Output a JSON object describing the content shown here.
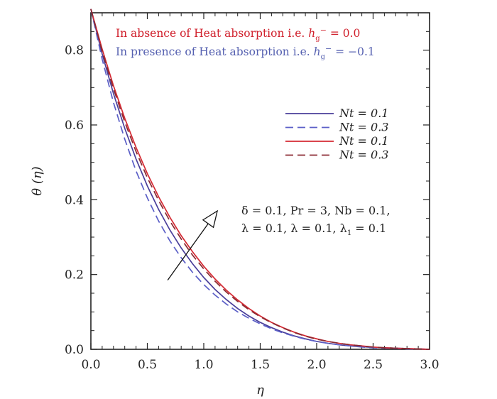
{
  "chart_data": {
    "type": "line",
    "xlabel": "η",
    "ylabel": "θ (η)",
    "xlim": [
      0.0,
      3.0
    ],
    "ylim": [
      0.0,
      0.9
    ],
    "x_ticks": [
      "0.0",
      "0.5",
      "1.0",
      "1.5",
      "2.0",
      "2.5",
      "3.0"
    ],
    "y_ticks": [
      "0.0",
      "0.2",
      "0.4",
      "0.6",
      "0.8"
    ],
    "grid": false,
    "legend_position": "right-middle",
    "annotations": {
      "absence": {
        "prefix": "In absence of Heat absorption i.e. ",
        "symbol": "h",
        "sub": "g",
        "sup": "−",
        "suffix": " = 0.0",
        "color": "#d0202c"
      },
      "presence": {
        "prefix": "In presence of Heat absorption i.e. ",
        "symbol": "h",
        "sub": "g",
        "sup": "−",
        "suffix": " = −0.1",
        "color": "#5560b0"
      },
      "params_line1": "δ = 0.1,  Pr = 3,  Nb = 0.1,",
      "params_line2": "λ = 0.1,  λ = 0.1,  λ",
      "params_line2_sub": "1",
      "params_line2_end": " = 0.1"
    },
    "arrow": {
      "from": [
        0.68,
        0.185
      ],
      "to": [
        1.12,
        0.37
      ]
    },
    "x": [
      0.0,
      0.1,
      0.2,
      0.3,
      0.4,
      0.5,
      0.6,
      0.7,
      0.8,
      0.9,
      1.0,
      1.1,
      1.2,
      1.3,
      1.4,
      1.5,
      1.6,
      1.7,
      1.8,
      1.9,
      2.0,
      2.1,
      2.2,
      2.3,
      2.4,
      2.5,
      2.6,
      2.7,
      2.8,
      2.9,
      3.0
    ],
    "series": [
      {
        "name": "Nt = 0.1",
        "color": "#4a3f9a",
        "dash": "solid",
        "values": [
          0.91,
          0.79,
          0.684,
          0.591,
          0.509,
          0.437,
          0.374,
          0.319,
          0.271,
          0.229,
          0.192,
          0.16,
          0.133,
          0.109,
          0.089,
          0.072,
          0.058,
          0.046,
          0.036,
          0.028,
          0.021,
          0.016,
          0.012,
          0.009,
          0.007,
          0.005,
          0.004,
          0.003,
          0.002,
          0.001,
          0.0
        ]
      },
      {
        "name": "Nt = 0.3",
        "color": "#5b5fc7",
        "dash": "dashed",
        "values": [
          0.91,
          0.776,
          0.66,
          0.562,
          0.477,
          0.405,
          0.343,
          0.29,
          0.245,
          0.206,
          0.173,
          0.145,
          0.121,
          0.1,
          0.083,
          0.068,
          0.055,
          0.044,
          0.035,
          0.027,
          0.021,
          0.016,
          0.012,
          0.009,
          0.006,
          0.004,
          0.003,
          0.002,
          0.001,
          0.001,
          0.0
        ]
      },
      {
        "name": "Nt = 0.1",
        "color": "#d42a33",
        "dash": "solid",
        "values": [
          0.91,
          0.803,
          0.705,
          0.618,
          0.54,
          0.47,
          0.408,
          0.353,
          0.304,
          0.261,
          0.222,
          0.188,
          0.158,
          0.132,
          0.109,
          0.089,
          0.072,
          0.058,
          0.046,
          0.036,
          0.028,
          0.021,
          0.016,
          0.012,
          0.009,
          0.006,
          0.004,
          0.003,
          0.002,
          0.001,
          0.0
        ]
      },
      {
        "name": "Nt = 0.3",
        "color": "#8a2a32",
        "dash": "dashed",
        "values": [
          0.91,
          0.797,
          0.697,
          0.608,
          0.529,
          0.459,
          0.398,
          0.343,
          0.295,
          0.252,
          0.215,
          0.182,
          0.153,
          0.128,
          0.106,
          0.087,
          0.071,
          0.057,
          0.045,
          0.035,
          0.027,
          0.021,
          0.016,
          0.012,
          0.009,
          0.006,
          0.004,
          0.003,
          0.002,
          0.001,
          0.0
        ]
      }
    ]
  }
}
